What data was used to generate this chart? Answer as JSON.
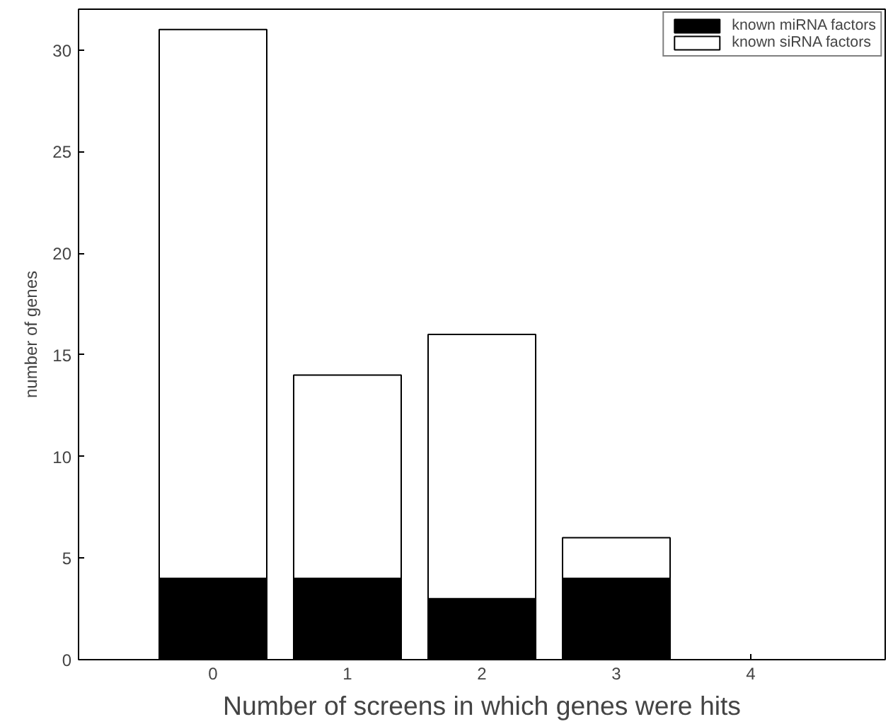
{
  "chart_data": {
    "type": "bar",
    "stacked": true,
    "xlabel": "Number of screens in which genes were hits",
    "ylabel": "number of genes",
    "x": [
      0,
      1,
      2,
      3,
      4
    ],
    "xlim": [
      -1,
      5
    ],
    "xticks": [
      0,
      1,
      2,
      3,
      4
    ],
    "ylim": [
      0,
      32
    ],
    "yticks": [
      0,
      5,
      10,
      15,
      20,
      25,
      30
    ],
    "series": [
      {
        "name": "known miRNA factors",
        "color": "#000000",
        "values": [
          4,
          4,
          3,
          4,
          0
        ]
      },
      {
        "name": "known siRNA factors",
        "color": "#ffffff",
        "values": [
          27,
          10,
          13,
          2,
          0
        ]
      }
    ],
    "grid": false,
    "legend": "top right"
  }
}
